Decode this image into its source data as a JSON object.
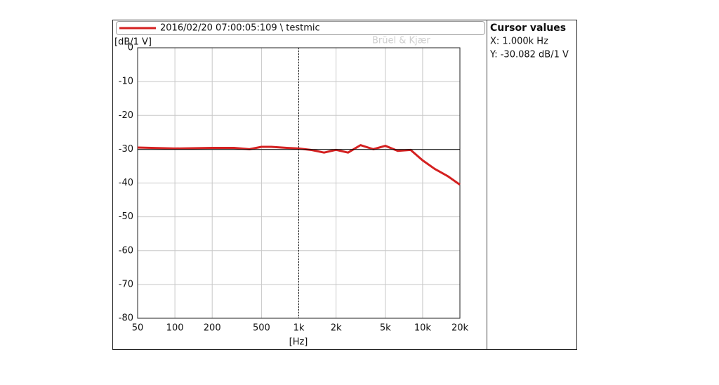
{
  "chart_data": {
    "type": "line",
    "watermark": "Brüel & Kjær",
    "y_label": "[dB/1 V]",
    "x_label": "[Hz]",
    "log_x": true,
    "grid": true,
    "x": [
      50,
      100,
      200,
      300,
      400,
      500,
      600,
      800,
      1000,
      1250,
      1600,
      2000,
      2500,
      3150,
      4000,
      5000,
      6300,
      8000,
      10000,
      12500,
      16000,
      20000
    ],
    "series": [
      {
        "name": "2016/02/20 07:00:05:109 \\ testmic",
        "color": "#d42020",
        "values": [
          -29.5,
          -29.8,
          -29.6,
          -29.6,
          -30,
          -29.3,
          -29.3,
          -29.6,
          -29.8,
          -30.2,
          -31,
          -30.2,
          -31,
          -28.8,
          -30,
          -29,
          -30.5,
          -30.2,
          -33.3,
          -35.8,
          -38,
          -40.5
        ]
      }
    ],
    "xlim": [
      50,
      20000
    ],
    "ylim": [
      -80,
      0
    ],
    "xticks": [
      50,
      100,
      200,
      500,
      {
        "value": 1000,
        "label": "1k"
      },
      {
        "value": 2000,
        "label": "2k"
      },
      {
        "value": 5000,
        "label": "5k"
      },
      {
        "value": 10000,
        "label": "10k"
      },
      {
        "value": 20000,
        "label": "20k"
      }
    ],
    "yticks": [
      0,
      -10,
      -20,
      -30,
      -40,
      -50,
      -60,
      -70,
      -80
    ],
    "cursor": {
      "title": "Cursor values",
      "x": {
        "value": 1000,
        "label": "X: 1.000k Hz"
      },
      "y": {
        "value": -30.082,
        "label": "Y: -30.082 dB/1 V"
      }
    }
  }
}
